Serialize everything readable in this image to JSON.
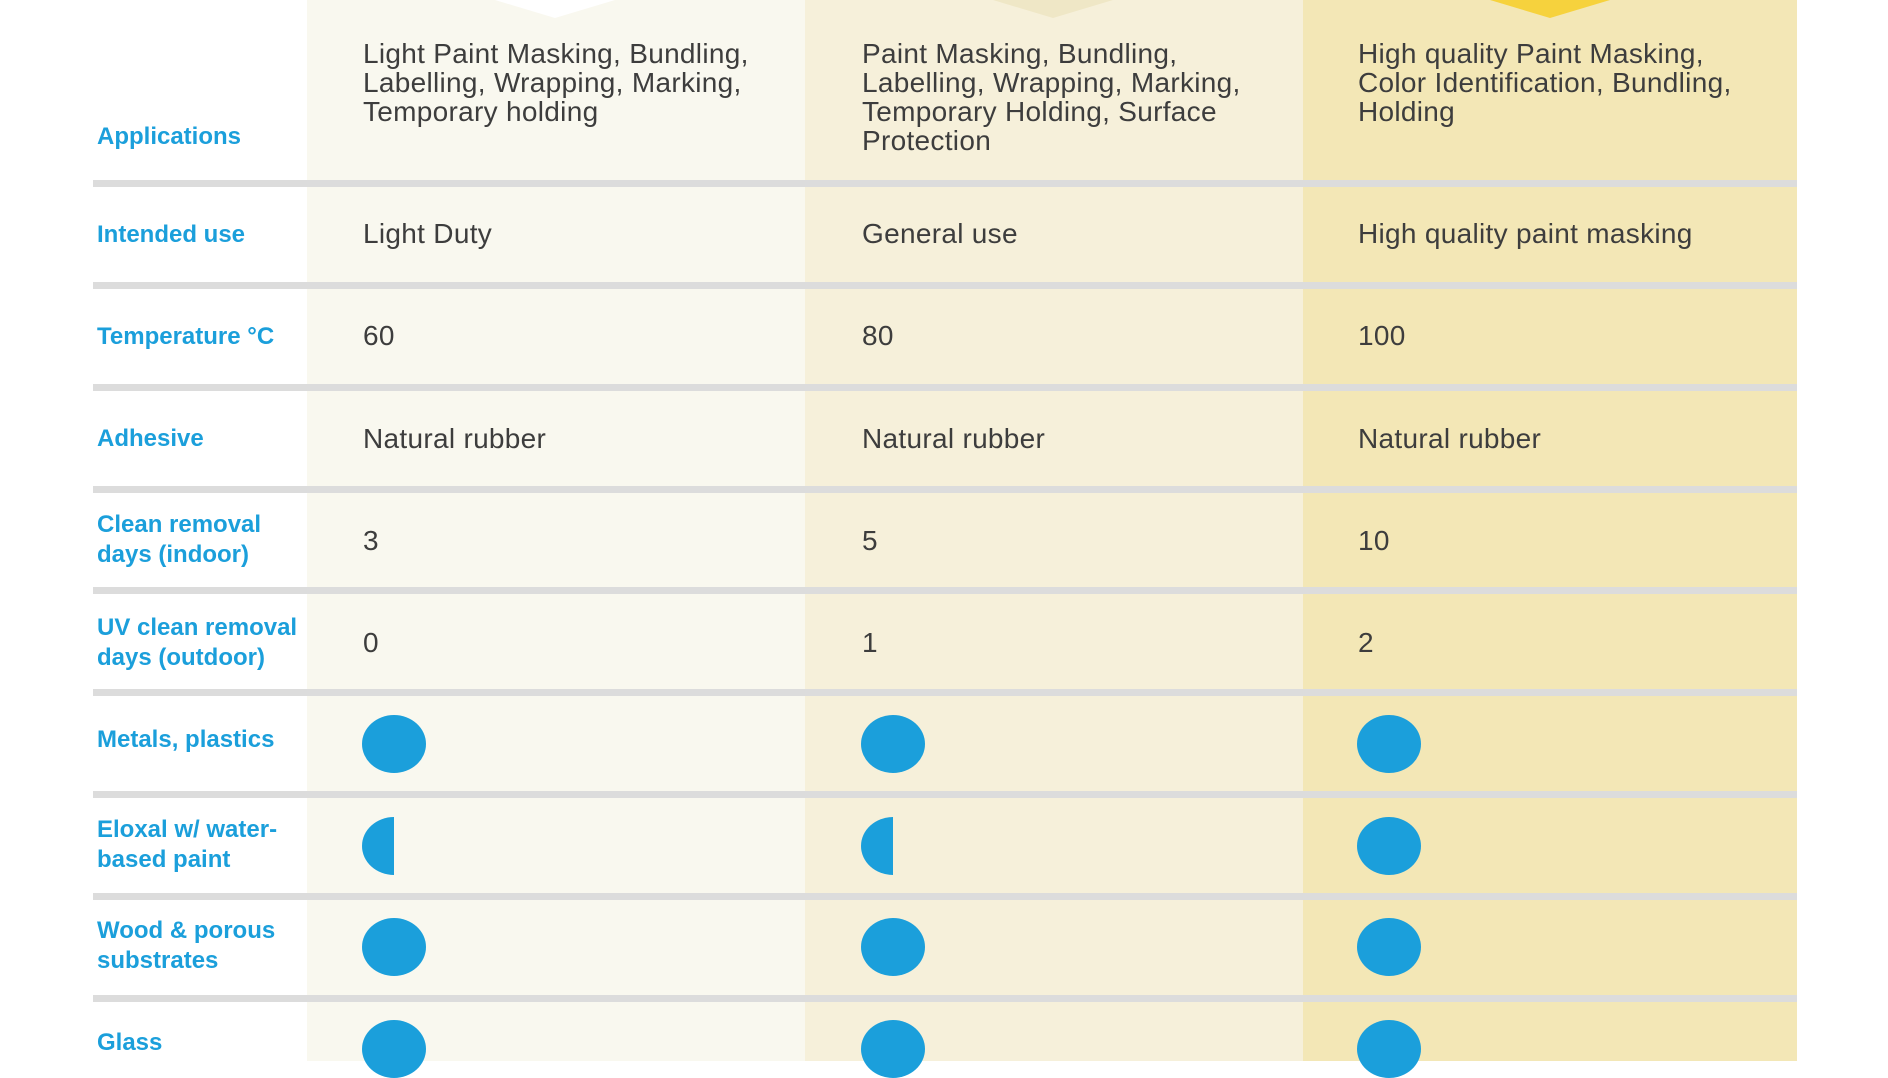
{
  "rows": [
    {
      "label": "Applications",
      "values": [
        "Light Paint Masking, Bundling, Labelling, Wrapping, Marking, Temporary holding",
        "Paint Masking, Bundling, Labelling, Wrapping, Marking, Temporary Holding, Surface Protection",
        "High quality Paint Masking, Color Identification, Bundling, Holding"
      ]
    },
    {
      "label": "Intended use",
      "values": [
        "Light Duty",
        "General use",
        "High quality paint masking"
      ]
    },
    {
      "label": "Temperature °C",
      "values": [
        "60",
        "80",
        "100"
      ]
    },
    {
      "label": "Adhesive",
      "values": [
        "Natural rubber",
        "Natural rubber",
        "Natural rubber"
      ]
    },
    {
      "label": "Clean removal days (indoor)",
      "values": [
        "3",
        "5",
        "10"
      ]
    },
    {
      "label": "UV clean removal days (outdoor)",
      "values": [
        "0",
        "1",
        "2"
      ]
    },
    {
      "label": "Metals, plastics",
      "ratings": [
        "full",
        "full",
        "full"
      ]
    },
    {
      "label": "Eloxal w/ water-based paint",
      "ratings": [
        "half",
        "half",
        "full"
      ]
    },
    {
      "label": "Wood & porous substrates",
      "ratings": [
        "full",
        "full",
        "full"
      ]
    },
    {
      "label": "Glass",
      "ratings": [
        "full",
        "full",
        "full"
      ]
    }
  ],
  "colors": {
    "label": "#1b9fdb",
    "dot": "#1b9fdb",
    "text": "#3d3d3d",
    "col1_bg": "#f9f8ef",
    "col2_bg": "#f6f0da",
    "col3_bg": "#f3e7b6",
    "divider": "#dcdcdc",
    "tab3": "#f6d23d"
  }
}
